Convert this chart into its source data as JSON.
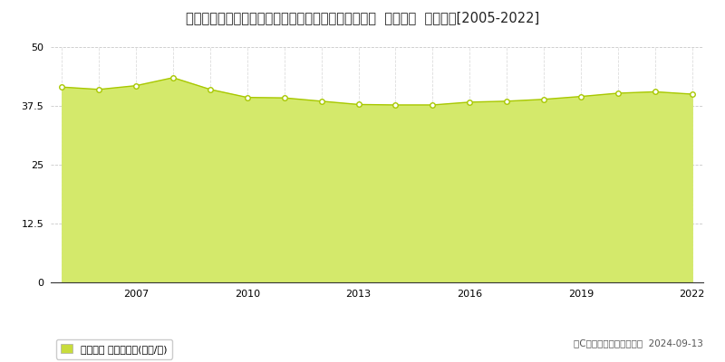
{
  "title": "東京都西多摩郡瑞穂町大字箱根ケ崎字狭山２９５番４  地価公示  地価推移[2005-2022]",
  "years": [
    2005,
    2006,
    2007,
    2008,
    2009,
    2010,
    2011,
    2012,
    2013,
    2014,
    2015,
    2016,
    2017,
    2018,
    2019,
    2020,
    2021,
    2022
  ],
  "values": [
    41.5,
    41.0,
    41.8,
    43.5,
    41.0,
    39.3,
    39.2,
    38.5,
    37.8,
    37.7,
    37.7,
    38.3,
    38.5,
    38.9,
    39.5,
    40.2,
    40.5,
    40.0
  ],
  "ylim": [
    0,
    50
  ],
  "yticks": [
    0,
    12.5,
    25,
    37.5,
    50
  ],
  "ytick_labels": [
    "0",
    "12.5",
    "25",
    "37.5",
    "50"
  ],
  "fill_color": "#d4e96b",
  "fill_alpha": 1.0,
  "line_color": "#a8c800",
  "marker_facecolor": "#ffffff",
  "marker_edgecolor": "#a8c800",
  "bg_color": "#ffffff",
  "grid_h_color": "#bbbbbb",
  "grid_v_color": "#bbbbbb",
  "title_fontsize": 10.5,
  "legend_label": "地価公示 平均坪単価(万円/坪)",
  "legend_color": "#c8dc3c",
  "copyright_text": "（C）土地価格ドットコム  2024-09-13",
  "xtick_years": [
    2007,
    2010,
    2013,
    2016,
    2019,
    2022
  ]
}
